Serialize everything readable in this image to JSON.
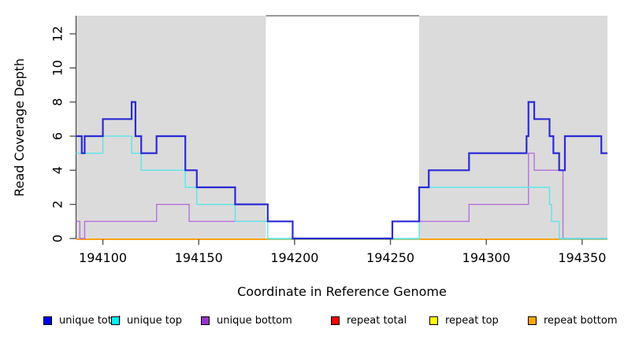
{
  "chart_data": {
    "type": "line",
    "subtype": "step-coverage",
    "title": "",
    "xlabel": "Coordinate in Reference Genome",
    "ylabel": "Read Coverage Depth",
    "xlim": [
      194086,
      194363.2
    ],
    "ylim": [
      0,
      13.06
    ],
    "x_ticks": [
      194100,
      194150,
      194200,
      194250,
      194300,
      194350
    ],
    "y_ticks": [
      0,
      2,
      4,
      6,
      8,
      10,
      12
    ],
    "grid": false,
    "panel_color": "#ffffff",
    "shaded_regions": [
      {
        "x0": 194086,
        "x1": 194185,
        "color": "#DBDBDB"
      },
      {
        "x0": 194265,
        "x1": 194363.2,
        "color": "#DBDBDB"
      }
    ],
    "baseline_segments": [
      {
        "x0": 194086,
        "x1": 194186,
        "color": "#FF9D09"
      },
      {
        "x0": 194186,
        "x1": 194265,
        "color": "#93CD96"
      },
      {
        "x0": 194265,
        "x1": 194338,
        "color": "#FF9D09"
      },
      {
        "x0": 194338,
        "x1": 194363.2,
        "color": "#93CD96"
      }
    ],
    "line_order": [
      "repeat total",
      "repeat top",
      "repeat bottom",
      "unique bottom",
      "unique top",
      "unique total"
    ],
    "series": [
      {
        "name": "unique total",
        "color": "#2B2BD5",
        "width": 2.2,
        "steps": [
          [
            194086,
            6
          ],
          [
            194089,
            5
          ],
          [
            194090.5,
            6
          ],
          [
            194100,
            7
          ],
          [
            194115,
            8
          ],
          [
            194117,
            6
          ],
          [
            194120,
            5
          ],
          [
            194128,
            6
          ],
          [
            194143,
            4
          ],
          [
            194149,
            3
          ],
          [
            194169,
            2
          ],
          [
            194186,
            1
          ],
          [
            194199,
            0
          ],
          [
            194251,
            1
          ],
          [
            194265,
            3
          ],
          [
            194270,
            4
          ],
          [
            194291,
            5
          ],
          [
            194321,
            6
          ],
          [
            194322,
            8
          ],
          [
            194325,
            7
          ],
          [
            194333,
            6
          ],
          [
            194335,
            5
          ],
          [
            194338,
            4
          ],
          [
            194341,
            6
          ],
          [
            194360,
            5
          ],
          [
            194363.2,
            5
          ]
        ]
      },
      {
        "name": "unique top",
        "color": "#5CE6EA",
        "width": 1.4,
        "steps": [
          [
            194086,
            5
          ],
          [
            194100,
            6
          ],
          [
            194115,
            5
          ],
          [
            194120,
            4
          ],
          [
            194143,
            3
          ],
          [
            194149,
            2
          ],
          [
            194169,
            1
          ],
          [
            194186,
            0
          ],
          [
            194265,
            3
          ],
          [
            194333,
            2
          ],
          [
            194334,
            1
          ],
          [
            194338,
            0
          ],
          [
            194363.2,
            0
          ]
        ]
      },
      {
        "name": "unique bottom",
        "color": "#B671DB",
        "width": 1.4,
        "steps": [
          [
            194086,
            1
          ],
          [
            194088,
            0
          ],
          [
            194090.5,
            1
          ],
          [
            194128,
            2
          ],
          [
            194145,
            1
          ],
          [
            194199,
            0
          ],
          [
            194251,
            1
          ],
          [
            194291,
            2
          ],
          [
            194322,
            5
          ],
          [
            194325,
            4
          ],
          [
            194340,
            0
          ],
          [
            194363.2,
            0
          ]
        ]
      },
      {
        "name": "repeat total",
        "color": "#E02020",
        "width": 1.4,
        "steps": [
          [
            194086,
            0
          ],
          [
            194363.2,
            0
          ]
        ]
      },
      {
        "name": "repeat top",
        "color": "#F5F500",
        "width": 1.4,
        "steps": [
          [
            194086,
            0
          ],
          [
            194363.2,
            0
          ]
        ]
      },
      {
        "name": "repeat bottom",
        "color": "#FF9D09",
        "width": 1.6,
        "steps": [
          [
            194086,
            0
          ],
          [
            194363.2,
            0
          ]
        ]
      }
    ]
  },
  "legend": {
    "items": [
      {
        "label": "unique total",
        "swatch": "#0000E8"
      },
      {
        "label": "unique top",
        "swatch": "#00F2F2"
      },
      {
        "label": "unique bottom",
        "swatch": "#9933CC"
      },
      {
        "label": "repeat total",
        "swatch": "#FF0000"
      },
      {
        "label": "repeat top",
        "swatch": "#FFFF00"
      },
      {
        "label": "repeat bottom",
        "swatch": "#FFA500"
      }
    ]
  }
}
